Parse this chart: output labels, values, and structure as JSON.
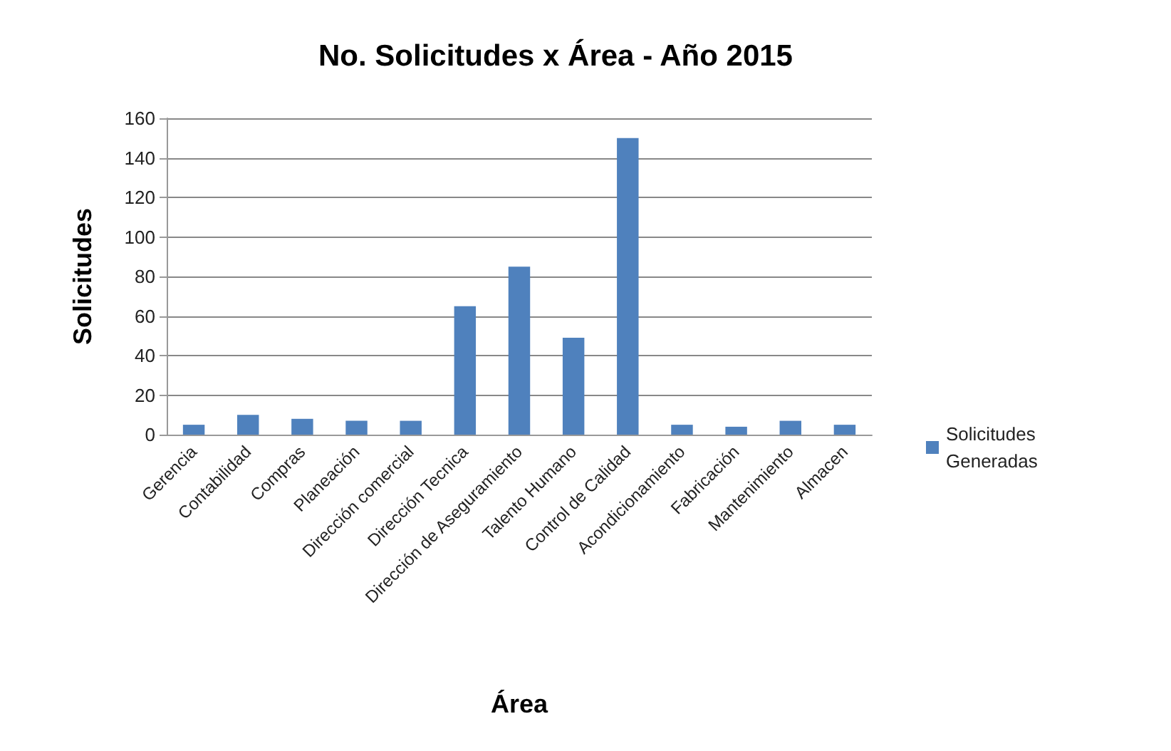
{
  "chart_data": {
    "type": "bar",
    "title": "No. Solicitudes x Área - Año 2015",
    "xlabel": "Área",
    "ylabel": "Solicitudes",
    "categories": [
      "Gerencia",
      "Contabilidad",
      "Compras",
      "Planeación",
      "Dirección comercial",
      "Dirección Tecnica",
      "Dirección de Aseguramiento",
      "Talento Humano",
      "Control de Calidad",
      "Acondicionamiento",
      "Fabricación",
      "Mantenimiento",
      "Almacen"
    ],
    "series": [
      {
        "name": "Solicitudes Generadas",
        "color": "#4f81bd",
        "values": [
          5,
          10,
          8,
          7,
          7,
          65,
          85,
          49,
          150,
          5,
          4,
          7,
          5
        ]
      }
    ],
    "ylim": [
      0,
      160
    ],
    "yticks": [
      0,
      20,
      40,
      60,
      80,
      100,
      120,
      140,
      160
    ],
    "grid": "y",
    "legend": "right"
  }
}
